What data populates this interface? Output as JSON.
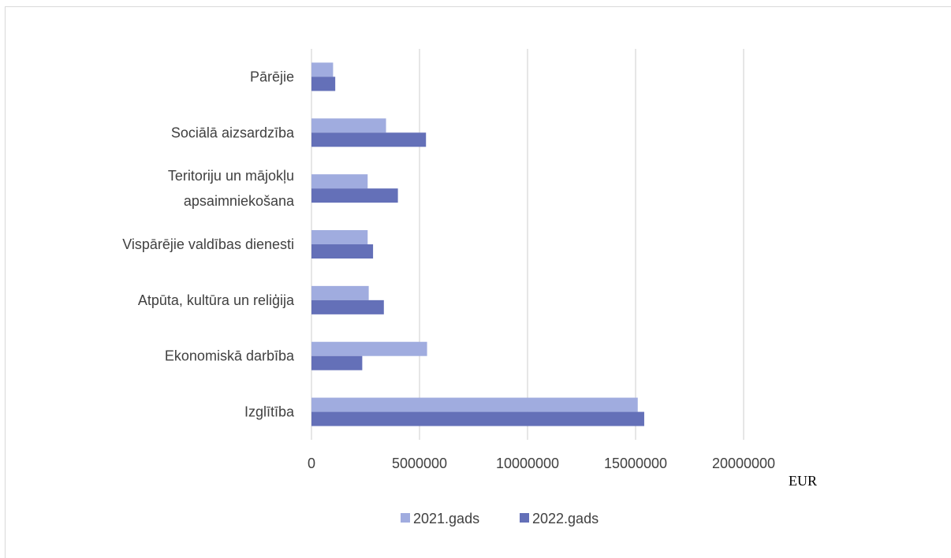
{
  "chart_data": {
    "type": "bar",
    "orientation": "horizontal",
    "categories": [
      "Pārējie",
      "Sociālā aizsardzība",
      "Teritoriju un mājokļu apsaimniekošana",
      "Vispārējie valdības dienesti",
      "Atpūta, kultūra un reliģija",
      "Ekonomiskā darbība",
      "Izglītība"
    ],
    "category_lines": [
      [
        "Pārējie"
      ],
      [
        "Sociālā aizsardzība"
      ],
      [
        "Teritoriju un mājokļu",
        "apsaimniekošana"
      ],
      [
        "Vispārējie valdības dienesti"
      ],
      [
        "Atpūta, kultūra un reliģija"
      ],
      [
        "Ekonomiskā darbība"
      ],
      [
        "Izglītība"
      ]
    ],
    "series": [
      {
        "name": "2021.gads",
        "color": "#a0acdf",
        "values": [
          1000000,
          3450000,
          2600000,
          2600000,
          2650000,
          5350000,
          15100000
        ]
      },
      {
        "name": "2022.gads",
        "color": "#6470b8",
        "values": [
          1100000,
          5300000,
          4000000,
          2850000,
          3350000,
          2350000,
          15400000
        ]
      }
    ],
    "xlim": [
      0,
      20000000
    ],
    "xticks": [
      0,
      5000000,
      10000000,
      15000000,
      20000000
    ],
    "xtick_labels": [
      "0",
      "5000000",
      "10000000",
      "15000000",
      "20000000"
    ],
    "unit_label": "EUR",
    "grid": "vertical",
    "legend_position": "bottom",
    "gridline_color": "#d9d9d9"
  }
}
